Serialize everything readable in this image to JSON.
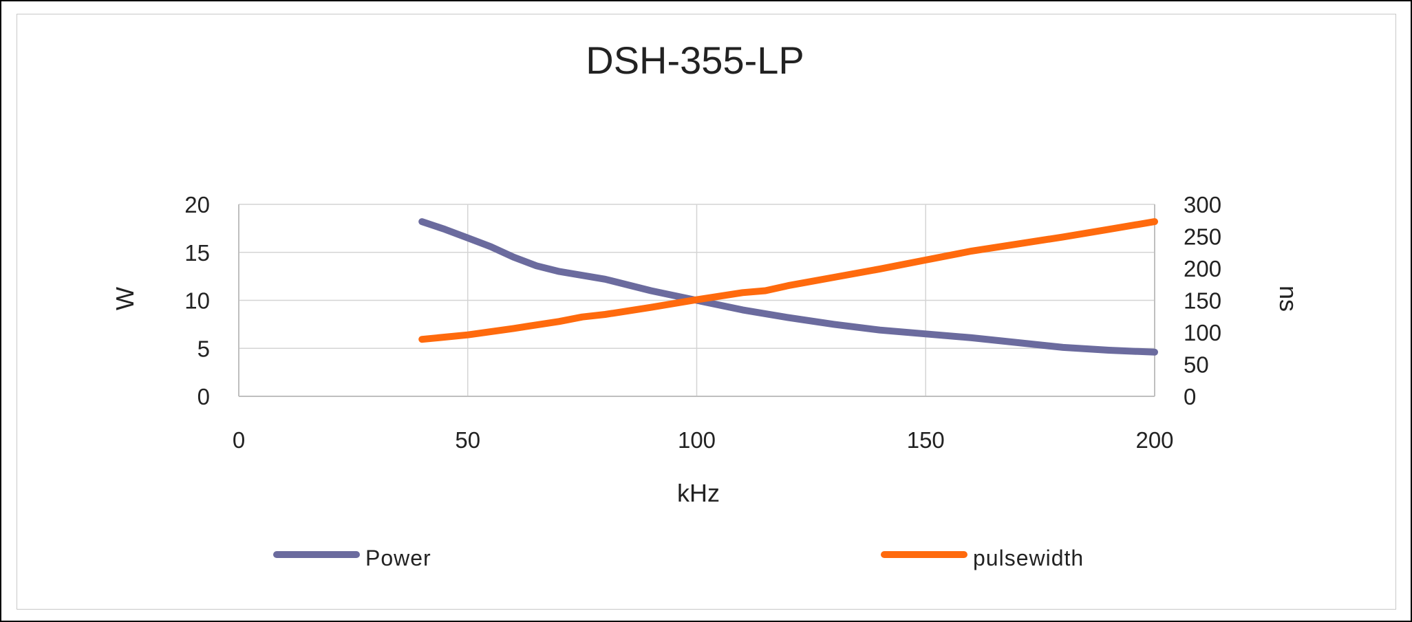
{
  "chart_data": {
    "type": "line",
    "title": "DSH-355-LP",
    "xlabel": "kHz",
    "ylabel_left": "W",
    "ylabel_right": "ns",
    "xlim": [
      0,
      200
    ],
    "ylim_left": [
      0,
      20
    ],
    "ylim_right": [
      0,
      300
    ],
    "x_ticks": [
      "0",
      "50",
      "100",
      "150",
      "200"
    ],
    "y_left_ticks": [
      "0",
      "5",
      "10",
      "15",
      "20"
    ],
    "y_right_ticks": [
      "0",
      "50",
      "100",
      "150",
      "200",
      "250",
      "300"
    ],
    "grid": true,
    "legend_position": "bottom",
    "series": [
      {
        "name": "Power",
        "axis": "left",
        "color": "#6b6b9e",
        "x": [
          40,
          45,
          50,
          55,
          60,
          65,
          70,
          80,
          90,
          100,
          110,
          120,
          130,
          140,
          150,
          160,
          170,
          180,
          190,
          200
        ],
        "y": [
          18.2,
          17.4,
          16.5,
          15.6,
          14.5,
          13.6,
          13.0,
          12.2,
          11.0,
          10.0,
          9.0,
          8.2,
          7.5,
          6.9,
          6.5,
          6.1,
          5.6,
          5.1,
          4.8,
          4.6
        ]
      },
      {
        "name": "pulsewidth",
        "axis": "right",
        "color": "#ff6a0d",
        "x": [
          40,
          50,
          60,
          70,
          75,
          80,
          90,
          100,
          110,
          115,
          120,
          130,
          140,
          150,
          160,
          170,
          180,
          190,
          200
        ],
        "y": [
          89,
          96,
          106,
          117,
          124,
          128,
          139,
          151,
          162,
          165,
          173,
          186,
          199,
          213,
          227,
          238,
          249,
          261,
          273
        ]
      }
    ]
  }
}
